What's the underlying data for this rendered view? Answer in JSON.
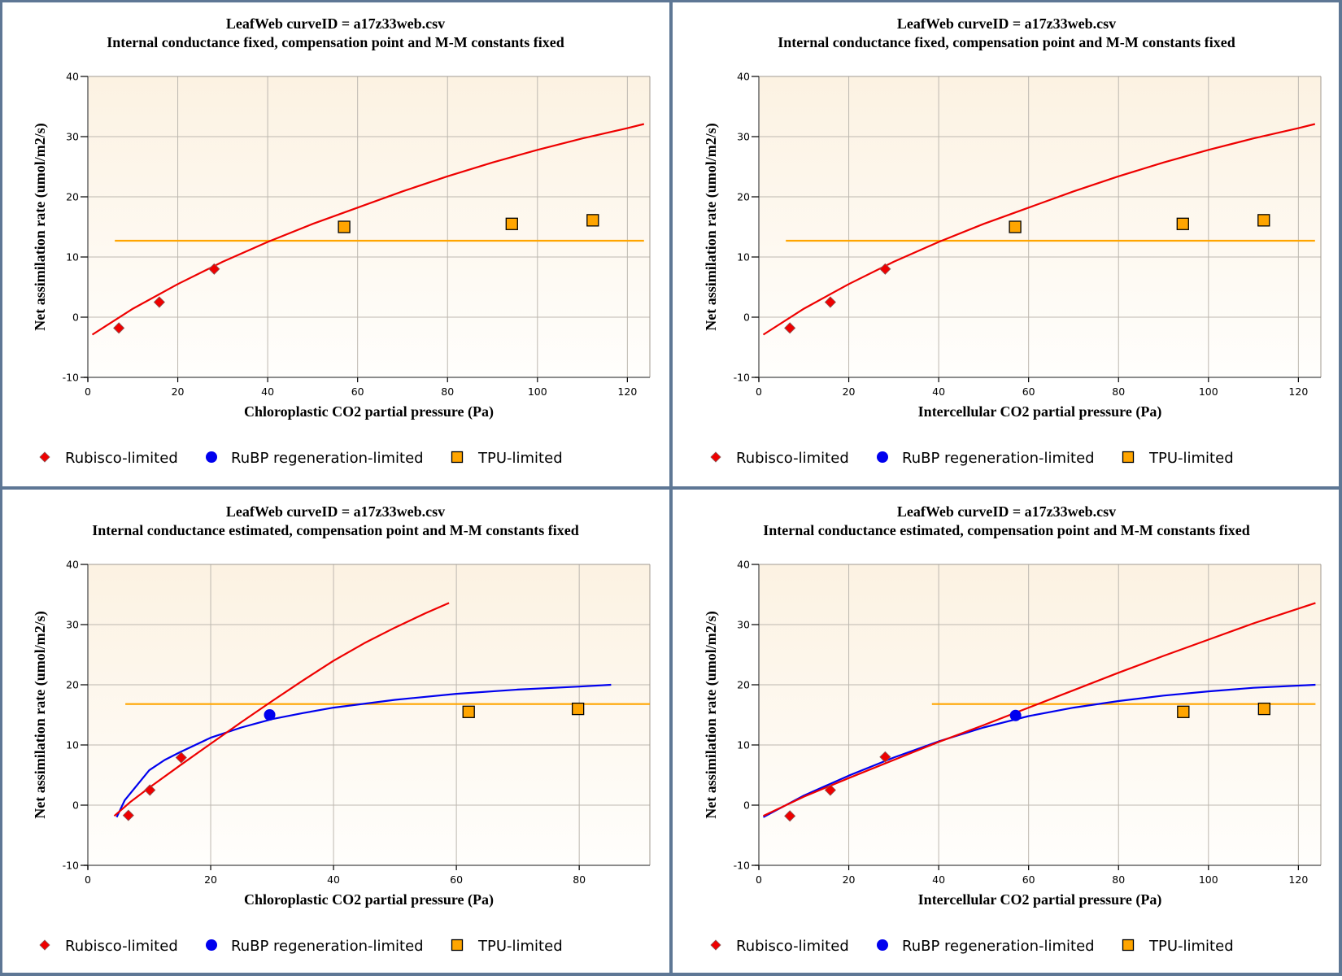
{
  "colors": {
    "rubisco": "#ee0000",
    "rubp": "#0000ee",
    "tpu": "#ffa500",
    "tpu_stroke": "#000000",
    "grid": "#bdb8b0",
    "frame": "#5e7795",
    "plot_bg_top": "#fcf2e2",
    "plot_bg_bottom": "#fffefc"
  },
  "legend": {
    "items": [
      {
        "label": "Rubisco-limited",
        "marker": "diamond",
        "series": "rubisco"
      },
      {
        "label": "RuBP regeneration-limited",
        "marker": "circle",
        "series": "rubp"
      },
      {
        "label": "TPU-limited",
        "marker": "square",
        "series": "tpu"
      }
    ]
  },
  "chart_data": [
    {
      "type": "scatter",
      "title": "LeafWeb curveID = a17z33web.csv",
      "subtitle": "Internal conductance fixed, compensation point and M-M constants fixed",
      "xlabel": "Chloroplastic CO2 partial pressure (Pa)",
      "ylabel": "Net assimilation rate (umol/m2/s)",
      "xlim": [
        0,
        125
      ],
      "ylim": [
        -10,
        40
      ],
      "xticks": [
        0,
        20,
        40,
        60,
        80,
        100,
        120
      ],
      "yticks": [
        -10,
        0,
        10,
        20,
        30,
        40
      ],
      "grid": true,
      "legend_position": "bottom",
      "points": {
        "rubisco": [
          [
            6.9,
            -1.8
          ],
          [
            15.9,
            2.5
          ],
          [
            28.1,
            8.0
          ]
        ],
        "rubp": [],
        "tpu": [
          [
            57.0,
            15.0
          ],
          [
            94.3,
            15.5
          ],
          [
            112.3,
            16.1
          ]
        ]
      },
      "curves": {
        "rubisco": [
          [
            1,
            -2.9
          ],
          [
            10,
            1.4
          ],
          [
            20,
            5.5
          ],
          [
            30,
            9.2
          ],
          [
            40,
            12.5
          ],
          [
            50,
            15.5
          ],
          [
            60,
            18.2
          ],
          [
            70,
            20.9
          ],
          [
            80,
            23.4
          ],
          [
            90,
            25.7
          ],
          [
            100,
            27.8
          ],
          [
            110,
            29.7
          ],
          [
            120,
            31.4
          ],
          [
            123.7,
            32.1
          ]
        ],
        "rubp": [],
        "tpu": [
          [
            6,
            12.7
          ],
          [
            123.7,
            12.7
          ]
        ]
      }
    },
    {
      "type": "scatter",
      "title": "LeafWeb curveID = a17z33web.csv",
      "subtitle": "Internal conductance fixed, compensation point and M-M constants fixed",
      "xlabel": "Intercellular CO2 partial pressure (Pa)",
      "ylabel": "Net assimilation rate (umol/m2/s)",
      "xlim": [
        0,
        125
      ],
      "ylim": [
        -10,
        40
      ],
      "xticks": [
        0,
        20,
        40,
        60,
        80,
        100,
        120
      ],
      "yticks": [
        -10,
        0,
        10,
        20,
        30,
        40
      ],
      "grid": true,
      "legend_position": "bottom",
      "points": {
        "rubisco": [
          [
            6.9,
            -1.8
          ],
          [
            15.9,
            2.5
          ],
          [
            28.1,
            8.0
          ]
        ],
        "rubp": [],
        "tpu": [
          [
            57.0,
            15.0
          ],
          [
            94.3,
            15.5
          ],
          [
            112.3,
            16.1
          ]
        ]
      },
      "curves": {
        "rubisco": [
          [
            1,
            -2.9
          ],
          [
            10,
            1.4
          ],
          [
            20,
            5.5
          ],
          [
            30,
            9.2
          ],
          [
            40,
            12.5
          ],
          [
            50,
            15.5
          ],
          [
            60,
            18.2
          ],
          [
            70,
            20.9
          ],
          [
            80,
            23.4
          ],
          [
            90,
            25.7
          ],
          [
            100,
            27.8
          ],
          [
            110,
            29.7
          ],
          [
            120,
            31.4
          ],
          [
            123.7,
            32.1
          ]
        ],
        "rubp": [],
        "tpu": [
          [
            6,
            12.7
          ],
          [
            123.7,
            12.7
          ]
        ]
      }
    },
    {
      "type": "scatter",
      "title": "LeafWeb curveID = a17z33web.csv",
      "subtitle": "Internal conductance estimated, compensation point and M-M constants fixed",
      "xlabel": "Chloroplastic CO2 partial pressure (Pa)",
      "ylabel": "Net assimilation rate (umol/m2/s)",
      "xlim": [
        0,
        91.5
      ],
      "ylim": [
        -10,
        40
      ],
      "xticks": [
        0,
        20,
        40,
        60,
        80
      ],
      "yticks": [
        -10,
        0,
        10,
        20,
        30,
        40
      ],
      "grid": true,
      "legend_position": "bottom",
      "points": {
        "rubisco": [
          [
            6.6,
            -1.7
          ],
          [
            10.1,
            2.5
          ],
          [
            15.2,
            7.9
          ]
        ],
        "rubp": [
          [
            29.6,
            15.0
          ]
        ],
        "tpu": [
          [
            62.0,
            15.5
          ],
          [
            79.8,
            16.0
          ]
        ]
      },
      "curves": {
        "rubisco": [
          [
            4.3,
            -1.8
          ],
          [
            7,
            0.6
          ],
          [
            10,
            2.9
          ],
          [
            15,
            6.6
          ],
          [
            20,
            10.2
          ],
          [
            25,
            13.8
          ],
          [
            30,
            17.3
          ],
          [
            35,
            20.7
          ],
          [
            40,
            24.0
          ],
          [
            45,
            26.9
          ],
          [
            50,
            29.5
          ],
          [
            55,
            31.9
          ],
          [
            58.8,
            33.6
          ]
        ],
        "rubp": [
          [
            4.7,
            -2.0
          ],
          [
            6,
            0.8
          ],
          [
            8,
            3.3
          ],
          [
            10,
            5.8
          ],
          [
            12.5,
            7.5
          ],
          [
            15,
            8.8
          ],
          [
            20,
            11.2
          ],
          [
            25,
            12.9
          ],
          [
            30,
            14.3
          ],
          [
            35,
            15.3
          ],
          [
            40,
            16.2
          ],
          [
            50,
            17.5
          ],
          [
            60,
            18.5
          ],
          [
            70,
            19.2
          ],
          [
            80,
            19.7
          ],
          [
            85.2,
            20.0
          ]
        ],
        "tpu": [
          [
            6.1,
            16.8
          ],
          [
            91.5,
            16.8
          ]
        ]
      }
    },
    {
      "type": "scatter",
      "title": "LeafWeb curveID = a17z33web.csv",
      "subtitle": "Internal conductance estimated, compensation point and M-M constants fixed",
      "xlabel": "Intercellular CO2 partial pressure (Pa)",
      "ylabel": "Net assimilation rate (umol/m2/s)",
      "xlim": [
        0,
        125
      ],
      "ylim": [
        -10,
        40
      ],
      "xticks": [
        0,
        20,
        40,
        60,
        80,
        100,
        120
      ],
      "yticks": [
        -10,
        0,
        10,
        20,
        30,
        40
      ],
      "grid": true,
      "legend_position": "bottom",
      "points": {
        "rubisco": [
          [
            6.9,
            -1.8
          ],
          [
            15.9,
            2.5
          ],
          [
            28.1,
            8.0
          ]
        ],
        "rubp": [
          [
            57.1,
            14.9
          ]
        ],
        "tpu": [
          [
            94.4,
            15.5
          ],
          [
            112.4,
            16.0
          ]
        ]
      },
      "curves": {
        "rubisco": [
          [
            1,
            -1.8
          ],
          [
            10,
            1.4
          ],
          [
            20,
            4.5
          ],
          [
            30,
            7.5
          ],
          [
            40,
            10.5
          ],
          [
            50,
            13.3
          ],
          [
            60,
            16.2
          ],
          [
            70,
            19.1
          ],
          [
            80,
            22.0
          ],
          [
            90,
            24.8
          ],
          [
            100,
            27.5
          ],
          [
            110,
            30.2
          ],
          [
            123.8,
            33.6
          ]
        ],
        "rubp": [
          [
            1,
            -2.0
          ],
          [
            10,
            1.6
          ],
          [
            20,
            4.9
          ],
          [
            30,
            7.9
          ],
          [
            40,
            10.6
          ],
          [
            50,
            12.9
          ],
          [
            60,
            14.8
          ],
          [
            70,
            16.2
          ],
          [
            80,
            17.3
          ],
          [
            90,
            18.2
          ],
          [
            100,
            18.9
          ],
          [
            110,
            19.5
          ],
          [
            123.8,
            20.0
          ]
        ],
        "tpu": [
          [
            38.5,
            16.8
          ],
          [
            123.8,
            16.8
          ]
        ]
      }
    }
  ]
}
